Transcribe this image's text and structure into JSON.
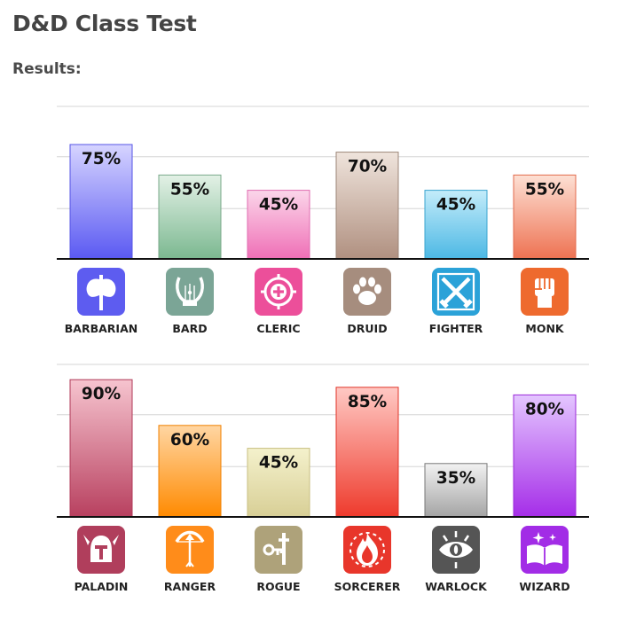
{
  "page": {
    "title": "D&D Class Test",
    "results_label": "Results:"
  },
  "chart_data": [
    {
      "type": "bar",
      "ylim": [
        0,
        100
      ],
      "grid": true,
      "categories": [
        "BARBARIAN",
        "BARD",
        "CLERIC",
        "DRUID",
        "FIGHTER",
        "MONK"
      ],
      "values": [
        75,
        55,
        45,
        70,
        45,
        55
      ],
      "labels": [
        "75%",
        "55%",
        "45%",
        "70%",
        "45%",
        "55%"
      ],
      "icons": [
        "double-axe-icon",
        "lyre-icon",
        "holy-symbol-icon",
        "paw-icon",
        "crossed-swords-icon",
        "fist-icon"
      ],
      "colors": [
        {
          "top": "#d6d4ff",
          "bottom": "#5a59f2",
          "border": "#5654e6",
          "icon": "#5d5cf0"
        },
        {
          "top": "#e3f1e6",
          "bottom": "#7bb890",
          "border": "#79a98a",
          "icon": "#7ba596"
        },
        {
          "top": "#fbd6ea",
          "bottom": "#ef6fb6",
          "border": "#e06bb0",
          "icon": "#ec4f9a"
        },
        {
          "top": "#efe4dc",
          "bottom": "#b09080",
          "border": "#9c8678",
          "icon": "#a68d7e"
        },
        {
          "top": "#c4ecfa",
          "bottom": "#4cb8e4",
          "border": "#3aa4cf",
          "icon": "#2ba2d8"
        },
        {
          "top": "#fde0d4",
          "bottom": "#ee7252",
          "border": "#e26a4c",
          "icon": "#ee6a2e"
        }
      ]
    },
    {
      "type": "bar",
      "ylim": [
        0,
        100
      ],
      "grid": true,
      "categories": [
        "PALADIN",
        "RANGER",
        "ROGUE",
        "SORCERER",
        "WARLOCK",
        "WIZARD"
      ],
      "values": [
        90,
        60,
        45,
        85,
        35,
        80
      ],
      "labels": [
        "90%",
        "60%",
        "45%",
        "85%",
        "35%",
        "80%"
      ],
      "icons": [
        "knight-helmet-icon",
        "bow-icon",
        "dagger-key-icon",
        "flame-icon",
        "eye-icon",
        "spellbook-icon"
      ],
      "colors": [
        {
          "top": "#f6c4cf",
          "bottom": "#b8405f",
          "border": "#b03a58",
          "icon": "#b03e5c"
        },
        {
          "top": "#ffd6a3",
          "bottom": "#ff8a00",
          "border": "#f08000",
          "icon": "#ff8c1a"
        },
        {
          "top": "#f4f1cc",
          "bottom": "#d8cf96",
          "border": "#c8bf80",
          "icon": "#aea27a"
        },
        {
          "top": "#ffc9c4",
          "bottom": "#ee3a2c",
          "border": "#e03428",
          "icon": "#e8362b"
        },
        {
          "top": "#f2f2f2",
          "bottom": "#a4a4a4",
          "border": "#777777",
          "icon": "#555555"
        },
        {
          "top": "#e4c6ff",
          "bottom": "#a52de8",
          "border": "#9a28d8",
          "icon": "#a22ce6"
        }
      ]
    }
  ]
}
